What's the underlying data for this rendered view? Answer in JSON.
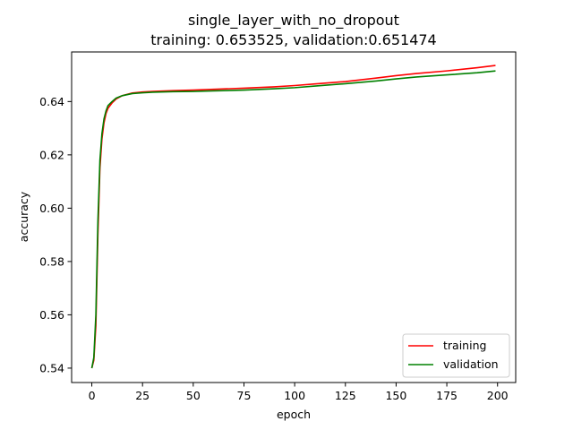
{
  "chart_data": {
    "type": "line",
    "title": "single_layer_with_no_dropout",
    "subtitle": "training: 0.653525, validation:0.651474",
    "xlabel": "epoch",
    "ylabel": "accuracy",
    "xlim": [
      -9.95,
      208.95
    ],
    "ylim": [
      0.5346,
      0.6586
    ],
    "xticks": [
      0,
      25,
      50,
      75,
      100,
      125,
      150,
      175,
      200
    ],
    "yticks": [
      0.54,
      0.56,
      0.58,
      0.6,
      0.62,
      0.64
    ],
    "ytick_labels": [
      "0.54",
      "0.56",
      "0.58",
      "0.60",
      "0.62",
      "0.64"
    ],
    "grid": false,
    "legend_position": "lower-right",
    "series": [
      {
        "name": "training",
        "color": "#ff0000",
        "points": [
          [
            0,
            0.54
          ],
          [
            1,
            0.543
          ],
          [
            2,
            0.556
          ],
          [
            3,
            0.59
          ],
          [
            4,
            0.615
          ],
          [
            5,
            0.626
          ],
          [
            6,
            0.632
          ],
          [
            7,
            0.6355
          ],
          [
            8,
            0.6375
          ],
          [
            10,
            0.6395
          ],
          [
            12,
            0.641
          ],
          [
            15,
            0.6422
          ],
          [
            20,
            0.6432
          ],
          [
            25,
            0.6436
          ],
          [
            30,
            0.6438
          ],
          [
            40,
            0.6441
          ],
          [
            50,
            0.6443
          ],
          [
            60,
            0.6446
          ],
          [
            75,
            0.645
          ],
          [
            90,
            0.6455
          ],
          [
            100,
            0.646
          ],
          [
            110,
            0.6466
          ],
          [
            125,
            0.6475
          ],
          [
            140,
            0.6488
          ],
          [
            150,
            0.6497
          ],
          [
            160,
            0.6505
          ],
          [
            175,
            0.6515
          ],
          [
            190,
            0.6527
          ],
          [
            199,
            0.65353
          ]
        ]
      },
      {
        "name": "validation",
        "color": "#008000",
        "points": [
          [
            0,
            0.54
          ],
          [
            1,
            0.544
          ],
          [
            2,
            0.56
          ],
          [
            3,
            0.595
          ],
          [
            4,
            0.618
          ],
          [
            5,
            0.628
          ],
          [
            6,
            0.6335
          ],
          [
            7,
            0.6365
          ],
          [
            8,
            0.6385
          ],
          [
            10,
            0.64
          ],
          [
            12,
            0.6413
          ],
          [
            15,
            0.6422
          ],
          [
            20,
            0.643
          ],
          [
            25,
            0.6433
          ],
          [
            30,
            0.6435
          ],
          [
            40,
            0.6437
          ],
          [
            50,
            0.6438
          ],
          [
            60,
            0.644
          ],
          [
            75,
            0.6443
          ],
          [
            90,
            0.6448
          ],
          [
            100,
            0.6452
          ],
          [
            110,
            0.6458
          ],
          [
            125,
            0.6467
          ],
          [
            140,
            0.6477
          ],
          [
            150,
            0.6485
          ],
          [
            160,
            0.6492
          ],
          [
            175,
            0.65
          ],
          [
            190,
            0.6508
          ],
          [
            199,
            0.65147
          ]
        ]
      }
    ]
  }
}
